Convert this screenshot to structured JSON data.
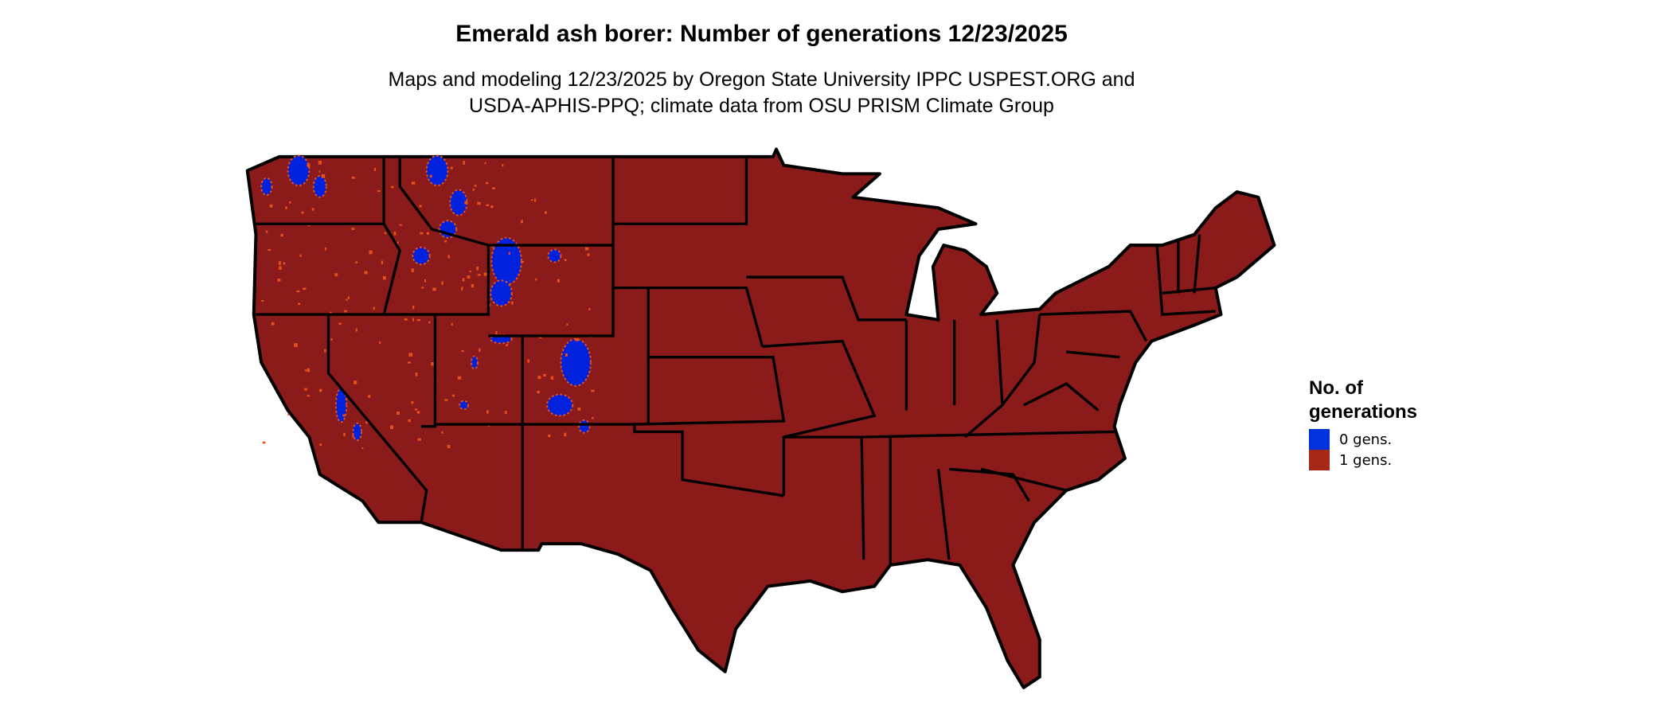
{
  "title": "Emerald ash borer: Number of generations 12/23/2025",
  "subtitle": {
    "line1": "Maps and modeling 12/23/2025 by Oregon State University IPPC USPEST.ORG and",
    "line2": "USDA-APHIS-PPQ; climate data from OSU PRISM Climate Group"
  },
  "map": {
    "region": "Contiguous United States",
    "dominant_class": "1 gens.",
    "zero_generation_areas": [
      "Cascades (WA)",
      "Northern Rockies (ID/MT)",
      "Wyoming ranges",
      "Uinta Mountains (UT)",
      "Colorado Rockies",
      "Sierra Nevada (CA)"
    ],
    "colors": {
      "fill_1": "#8b1a1a",
      "fill_0": "#0022dd",
      "edge": "#e8501a",
      "border": "#000000"
    }
  },
  "legend": {
    "title_line1": "No. of",
    "title_line2": "generations",
    "items": [
      {
        "label": "0 gens.",
        "color": "#0033dd"
      },
      {
        "label": "1 gens.",
        "color": "#a52817"
      }
    ]
  }
}
